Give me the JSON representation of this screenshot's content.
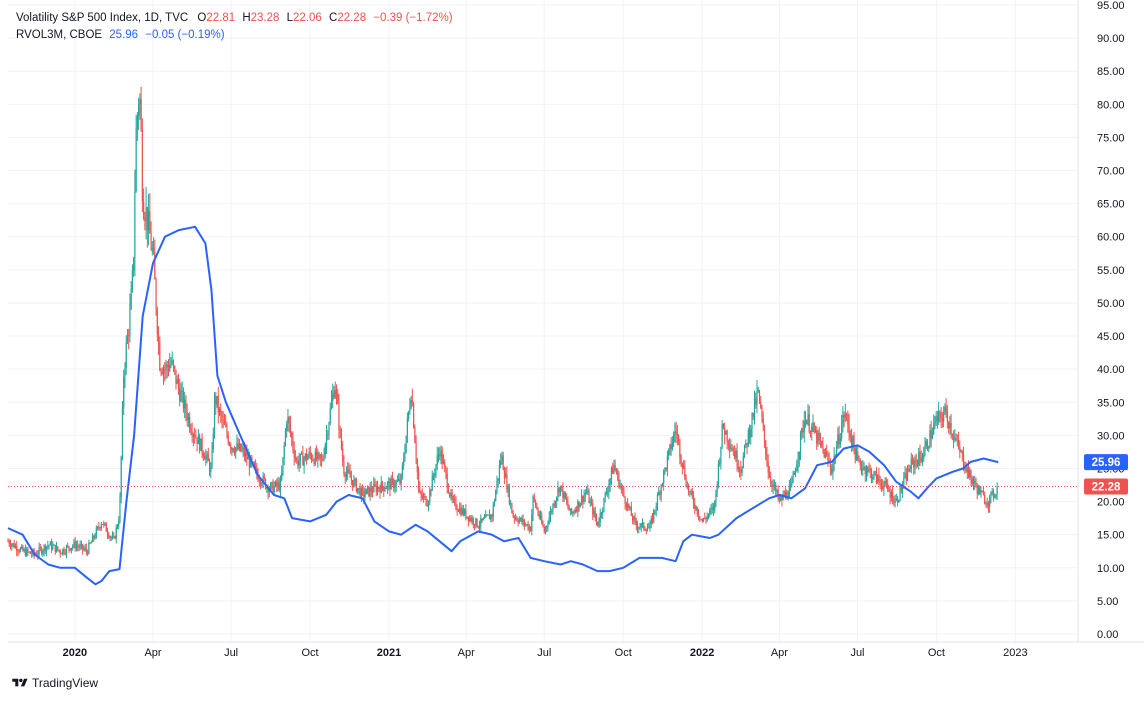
{
  "legend": {
    "main_name": "Volatility S&P 500 Index, 1D, TVC",
    "o_label": "O",
    "o_value": "22.81",
    "h_label": "H",
    "h_value": "23.28",
    "l_label": "L",
    "l_value": "22.06",
    "c_label": "C",
    "c_value": "22.28",
    "change": "−0.39 (−1.72%)",
    "overlay_name": "RVOL3M, CBOE",
    "overlay_value": "25.96",
    "overlay_change": "−0.05 (−0.19%)"
  },
  "footer": {
    "brand": "TradingView",
    "logo_icon": "tradingview-logo-icon"
  },
  "colors": {
    "up": "#26a69a",
    "down": "#ef5350",
    "overlay": "#2962ff",
    "grid": "#f0f3fa",
    "text": "#131722",
    "price_line": "#ef5350"
  },
  "chart_data": {
    "type": "line",
    "title": "",
    "y_axis": {
      "min": 0,
      "max": 95,
      "position": "right",
      "ticks": [
        "0.00",
        "5.00",
        "10.00",
        "15.00",
        "20.00",
        "25.00",
        "30.00",
        "35.00",
        "40.00",
        "45.00",
        "50.00",
        "55.00",
        "60.00",
        "65.00",
        "70.00",
        "75.00",
        "80.00",
        "85.00",
        "90.00",
        "95.00"
      ]
    },
    "x_axis": {
      "range": [
        "2019-10-15",
        "2023-03-15"
      ],
      "tick_labels": [
        {
          "label": "2020",
          "date": "2020-01-01",
          "bold": true
        },
        {
          "label": "Apr",
          "date": "2020-04-01"
        },
        {
          "label": "Jul",
          "date": "2020-07-01"
        },
        {
          "label": "Oct",
          "date": "2020-10-01"
        },
        {
          "label": "2021",
          "date": "2021-01-01",
          "bold": true
        },
        {
          "label": "Apr",
          "date": "2021-04-01"
        },
        {
          "label": "Jul",
          "date": "2021-07-01"
        },
        {
          "label": "Oct",
          "date": "2021-10-01"
        },
        {
          "label": "2022",
          "date": "2022-01-01",
          "bold": true
        },
        {
          "label": "Apr",
          "date": "2022-04-01"
        },
        {
          "label": "Jul",
          "date": "2022-07-01"
        },
        {
          "label": "Oct",
          "date": "2022-10-01"
        },
        {
          "label": "2023",
          "date": "2023-01-01"
        }
      ]
    },
    "grid": true,
    "price_labels": [
      {
        "value": 25.96,
        "text": "25.96",
        "color": "#2962ff"
      },
      {
        "value": 22.28,
        "text": "22.28",
        "color": "#ef5350"
      }
    ],
    "series": [
      {
        "name": "Volatility S&P 500 Index",
        "style": "candlestick",
        "up_color": "#26a69a",
        "down_color": "#ef5350",
        "points": [
          [
            "2019-10-15",
            14.0
          ],
          [
            "2019-11-01",
            12.5
          ],
          [
            "2019-11-15",
            12.0
          ],
          [
            "2019-12-01",
            13.5
          ],
          [
            "2019-12-15",
            12.5
          ],
          [
            "2020-01-01",
            13.5
          ],
          [
            "2020-01-15",
            12.5
          ],
          [
            "2020-02-01",
            17.0
          ],
          [
            "2020-02-15",
            14.0
          ],
          [
            "2020-02-22",
            18.0
          ],
          [
            "2020-02-27",
            40.0
          ],
          [
            "2020-03-05",
            48.0
          ],
          [
            "2020-03-09",
            55.0
          ],
          [
            "2020-03-12",
            75.0
          ],
          [
            "2020-03-16",
            82.7
          ],
          [
            "2020-03-18",
            76.0
          ],
          [
            "2020-03-20",
            66.0
          ],
          [
            "2020-03-25",
            63.0
          ],
          [
            "2020-04-01",
            57.0
          ],
          [
            "2020-04-09",
            41.0
          ],
          [
            "2020-04-15",
            40.0
          ],
          [
            "2020-04-22",
            41.0
          ],
          [
            "2020-05-01",
            37.0
          ],
          [
            "2020-05-15",
            31.5
          ],
          [
            "2020-06-01",
            27.0
          ],
          [
            "2020-06-08",
            24.5
          ],
          [
            "2020-06-12",
            36.0
          ],
          [
            "2020-06-18",
            33.0
          ],
          [
            "2020-07-01",
            28.5
          ],
          [
            "2020-07-15",
            27.5
          ],
          [
            "2020-08-01",
            24.0
          ],
          [
            "2020-08-15",
            22.0
          ],
          [
            "2020-08-28",
            22.5
          ],
          [
            "2020-09-04",
            33.0
          ],
          [
            "2020-09-15",
            26.0
          ],
          [
            "2020-10-01",
            27.0
          ],
          [
            "2020-10-15",
            26.0
          ],
          [
            "2020-10-30",
            38.0
          ],
          [
            "2020-11-09",
            25.0
          ],
          [
            "2020-11-20",
            23.0
          ],
          [
            "2020-12-01",
            21.0
          ],
          [
            "2020-12-15",
            22.0
          ],
          [
            "2021-01-01",
            22.5
          ],
          [
            "2021-01-15",
            23.0
          ],
          [
            "2021-01-27",
            37.0
          ],
          [
            "2021-02-05",
            21.0
          ],
          [
            "2021-02-15",
            20.0
          ],
          [
            "2021-03-01",
            28.0
          ],
          [
            "2021-03-15",
            20.0
          ],
          [
            "2021-04-01",
            18.0
          ],
          [
            "2021-04-15",
            16.5
          ],
          [
            "2021-05-01",
            18.0
          ],
          [
            "2021-05-12",
            27.0
          ],
          [
            "2021-05-25",
            18.0
          ],
          [
            "2021-06-15",
            16.0
          ],
          [
            "2021-06-18",
            20.5
          ],
          [
            "2021-07-01",
            15.5
          ],
          [
            "2021-07-19",
            22.5
          ],
          [
            "2021-08-01",
            18.0
          ],
          [
            "2021-08-19",
            21.5
          ],
          [
            "2021-09-01",
            16.5
          ],
          [
            "2021-09-20",
            25.5
          ],
          [
            "2021-10-01",
            21.0
          ],
          [
            "2021-10-15",
            16.5
          ],
          [
            "2021-11-01",
            16.0
          ],
          [
            "2021-11-26",
            28.5
          ],
          [
            "2021-12-01",
            31.0
          ],
          [
            "2021-12-15",
            22.0
          ],
          [
            "2022-01-01",
            17.0
          ],
          [
            "2022-01-15",
            19.0
          ],
          [
            "2022-01-25",
            31.5
          ],
          [
            "2022-02-15",
            25.0
          ],
          [
            "2022-03-07",
            36.5
          ],
          [
            "2022-03-20",
            24.0
          ],
          [
            "2022-04-01",
            20.0
          ],
          [
            "2022-04-15",
            22.0
          ],
          [
            "2022-05-01",
            33.0
          ],
          [
            "2022-05-15",
            29.5
          ],
          [
            "2022-06-01",
            25.0
          ],
          [
            "2022-06-16",
            33.5
          ],
          [
            "2022-07-01",
            26.0
          ],
          [
            "2022-07-15",
            24.5
          ],
          [
            "2022-08-01",
            22.5
          ],
          [
            "2022-08-15",
            20.0
          ],
          [
            "2022-09-01",
            25.5
          ],
          [
            "2022-09-15",
            27.0
          ],
          [
            "2022-09-30",
            32.0
          ],
          [
            "2022-10-12",
            33.5
          ],
          [
            "2022-10-25",
            28.5
          ],
          [
            "2022-11-10",
            23.5
          ],
          [
            "2022-11-25",
            20.5
          ],
          [
            "2022-12-01",
            20.0
          ],
          [
            "2022-12-12",
            22.28
          ]
        ]
      },
      {
        "name": "RVOL3M",
        "style": "line",
        "color": "#2962ff",
        "points": [
          [
            "2019-10-15",
            16.0
          ],
          [
            "2019-11-01",
            15.0
          ],
          [
            "2019-11-15",
            12.0
          ],
          [
            "2019-12-01",
            10.5
          ],
          [
            "2019-12-15",
            10.0
          ],
          [
            "2020-01-01",
            10.0
          ],
          [
            "2020-01-15",
            8.5
          ],
          [
            "2020-01-25",
            7.5
          ],
          [
            "2020-02-01",
            8.0
          ],
          [
            "2020-02-10",
            9.5
          ],
          [
            "2020-02-22",
            9.8
          ],
          [
            "2020-03-01",
            20.0
          ],
          [
            "2020-03-10",
            30.0
          ],
          [
            "2020-03-20",
            48.0
          ],
          [
            "2020-04-01",
            56.0
          ],
          [
            "2020-04-15",
            60.0
          ],
          [
            "2020-05-01",
            61.0
          ],
          [
            "2020-05-20",
            61.5
          ],
          [
            "2020-06-01",
            59.0
          ],
          [
            "2020-06-08",
            52.0
          ],
          [
            "2020-06-15",
            39.0
          ],
          [
            "2020-06-25",
            35.0
          ],
          [
            "2020-07-15",
            29.0
          ],
          [
            "2020-08-01",
            24.0
          ],
          [
            "2020-08-20",
            21.0
          ],
          [
            "2020-09-01",
            20.5
          ],
          [
            "2020-09-10",
            17.5
          ],
          [
            "2020-10-01",
            17.0
          ],
          [
            "2020-10-20",
            18.0
          ],
          [
            "2020-11-01",
            20.0
          ],
          [
            "2020-11-15",
            21.0
          ],
          [
            "2020-12-01",
            20.5
          ],
          [
            "2020-12-15",
            17.0
          ],
          [
            "2021-01-01",
            15.5
          ],
          [
            "2021-01-15",
            15.0
          ],
          [
            "2021-02-01",
            16.5
          ],
          [
            "2021-02-15",
            15.5
          ],
          [
            "2021-03-01",
            14.0
          ],
          [
            "2021-03-15",
            12.5
          ],
          [
            "2021-03-25",
            14.0
          ],
          [
            "2021-04-15",
            15.5
          ],
          [
            "2021-05-01",
            15.0
          ],
          [
            "2021-05-15",
            14.0
          ],
          [
            "2021-06-01",
            14.5
          ],
          [
            "2021-06-15",
            11.5
          ],
          [
            "2021-07-01",
            11.0
          ],
          [
            "2021-07-20",
            10.5
          ],
          [
            "2021-08-01",
            11.0
          ],
          [
            "2021-08-15",
            10.5
          ],
          [
            "2021-09-01",
            9.5
          ],
          [
            "2021-09-15",
            9.5
          ],
          [
            "2021-10-01",
            10.0
          ],
          [
            "2021-10-20",
            11.5
          ],
          [
            "2021-11-15",
            11.5
          ],
          [
            "2021-12-01",
            11.0
          ],
          [
            "2021-12-10",
            14.0
          ],
          [
            "2021-12-20",
            15.0
          ],
          [
            "2022-01-10",
            14.5
          ],
          [
            "2022-01-20",
            15.0
          ],
          [
            "2022-02-10",
            17.5
          ],
          [
            "2022-03-01",
            19.0
          ],
          [
            "2022-03-20",
            20.5
          ],
          [
            "2022-04-01",
            21.0
          ],
          [
            "2022-04-15",
            20.5
          ],
          [
            "2022-05-01",
            22.0
          ],
          [
            "2022-05-15",
            25.5
          ],
          [
            "2022-06-01",
            26.0
          ],
          [
            "2022-06-15",
            28.0
          ],
          [
            "2022-07-01",
            28.5
          ],
          [
            "2022-07-15",
            27.5
          ],
          [
            "2022-08-01",
            25.5
          ],
          [
            "2022-08-15",
            23.0
          ],
          [
            "2022-09-01",
            21.5
          ],
          [
            "2022-09-10",
            20.5
          ],
          [
            "2022-09-20",
            22.0
          ],
          [
            "2022-10-01",
            23.5
          ],
          [
            "2022-10-20",
            24.5
          ],
          [
            "2022-11-01",
            25.0
          ],
          [
            "2022-11-10",
            26.0
          ],
          [
            "2022-11-25",
            26.5
          ],
          [
            "2022-12-12",
            25.96
          ]
        ]
      }
    ]
  }
}
